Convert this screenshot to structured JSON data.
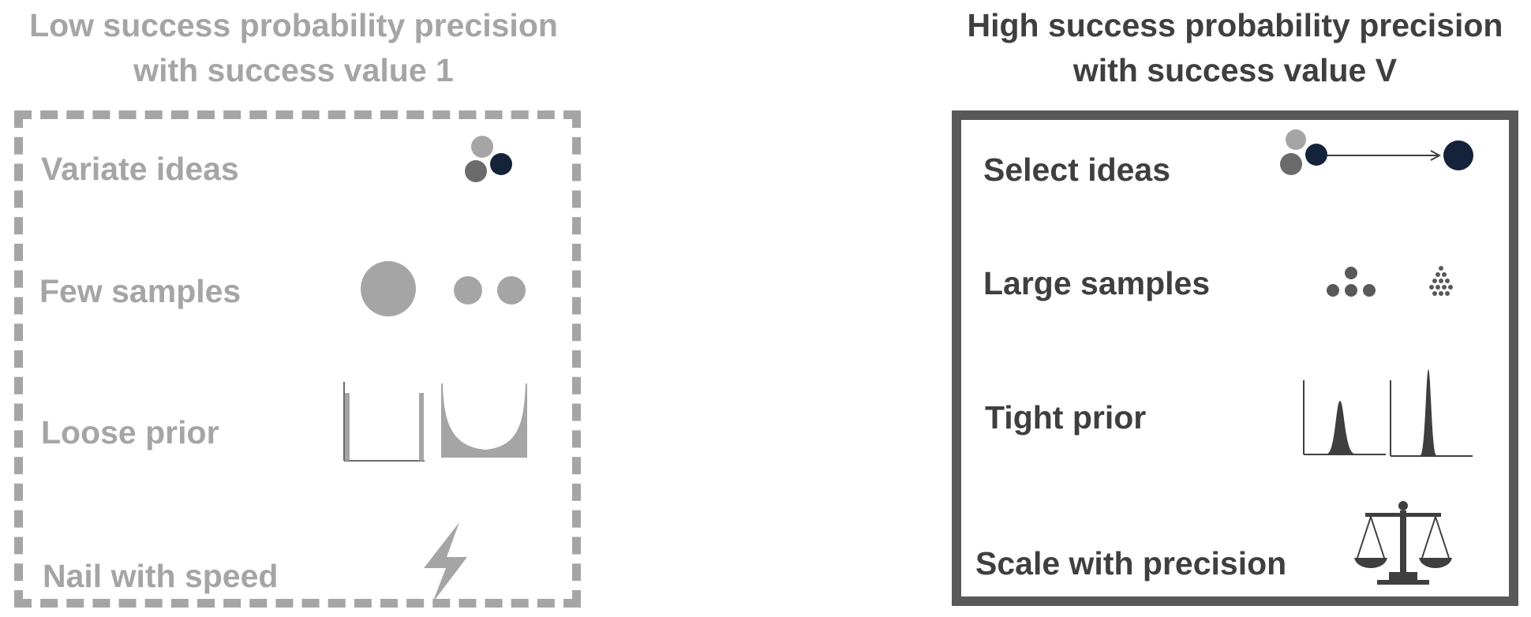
{
  "left_panel": {
    "title_line1": "Low success probability precision",
    "title_line2": "with success value 1",
    "rows": [
      {
        "label": "Variate ideas",
        "icon": "idea-circles-icon"
      },
      {
        "label": "Few samples",
        "icon": "few-sample-dots-icon"
      },
      {
        "label": "Loose prior",
        "icon": "loose-prior-distribution-icon"
      },
      {
        "label": "Nail with speed",
        "icon": "lightning-bolt-icon"
      }
    ]
  },
  "right_panel": {
    "title_line1": "High success probability precision",
    "title_line2": "with success value V",
    "rows": [
      {
        "label": "Select ideas",
        "icon": "select-idea-arrow-icon"
      },
      {
        "label": "Large samples",
        "icon": "many-sample-dots-icon"
      },
      {
        "label": "Tight prior",
        "icon": "tight-prior-distribution-icon"
      },
      {
        "label": "Scale with precision",
        "icon": "balance-scale-icon"
      }
    ]
  },
  "colors": {
    "light_gray": "#a5a5a5",
    "mid_gray": "#6b6b6b",
    "dark_gray": "#3f3f3f",
    "navy": "#14233a"
  }
}
